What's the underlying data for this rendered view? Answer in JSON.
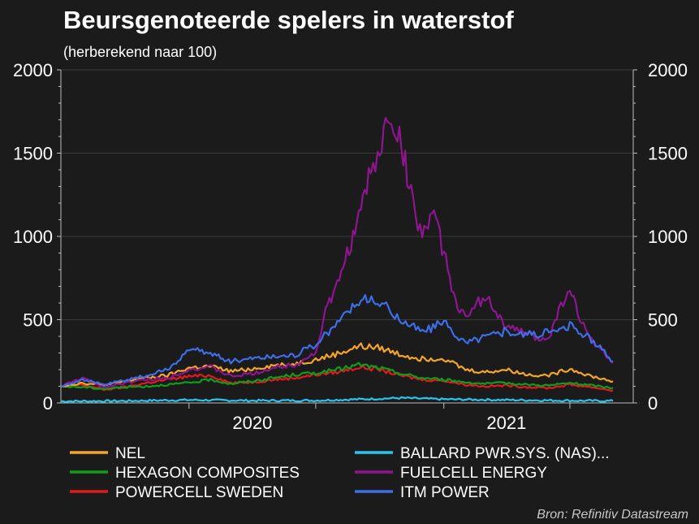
{
  "colors": {
    "background": "#1b1b1b",
    "text": "#ffffff",
    "source_text": "#c8c8c8",
    "grid": "#3a3a3a",
    "axis": "#bdbdbd"
  },
  "chart_data": {
    "type": "line",
    "title": "Beursgenoteerde spelers in waterstof",
    "subtitle": "(herberekend naar 100)",
    "source": "Bron: Refinitiv Datastream",
    "xlabel": "",
    "ylabel": "",
    "ylim": [
      0,
      2000
    ],
    "xlim": [
      "2019-07-01",
      "2021-09-30"
    ],
    "y_ticks": [
      "0",
      "500",
      "1000",
      "1500",
      "2000"
    ],
    "y_tick_values": [
      0,
      500,
      1000,
      1500,
      2000
    ],
    "x_ticks": [
      {
        "date": "2020-01-01",
        "label": ""
      },
      {
        "date": "2020-07-01",
        "label": ""
      },
      {
        "date": "2021-01-01",
        "label": ""
      },
      {
        "date": "2021-07-01",
        "label": ""
      }
    ],
    "x_tick_labels": [
      {
        "date": "2020-04-01",
        "label": "2020"
      },
      {
        "date": "2021-04-01",
        "label": "2021"
      }
    ],
    "dual_y_axis": true,
    "grid": true,
    "legend_position": "bottom",
    "series": [
      {
        "name": "NEL",
        "color": "#f5a623",
        "x": [
          "2019-07-01",
          "2019-08-01",
          "2019-09-01",
          "2019-10-01",
          "2019-11-01",
          "2019-12-01",
          "2020-01-01",
          "2020-02-01",
          "2020-03-01",
          "2020-04-01",
          "2020-05-01",
          "2020-06-01",
          "2020-07-01",
          "2020-08-01",
          "2020-09-01",
          "2020-10-01",
          "2020-11-01",
          "2020-12-01",
          "2021-01-01",
          "2021-02-01",
          "2021-03-01",
          "2021-04-01",
          "2021-05-01",
          "2021-06-01",
          "2021-07-01",
          "2021-08-01",
          "2021-09-01"
        ],
        "values": [
          100,
          120,
          105,
          130,
          150,
          165,
          210,
          220,
          190,
          205,
          225,
          235,
          260,
          295,
          340,
          330,
          290,
          265,
          270,
          200,
          185,
          200,
          170,
          165,
          205,
          160,
          130
        ]
      },
      {
        "name": "BALLARD PWR.SYS. (NAS)...",
        "color": "#26c6f0",
        "x": [
          "2019-07-01",
          "2019-10-01",
          "2020-01-01",
          "2020-04-01",
          "2020-07-01",
          "2020-09-01",
          "2020-11-01",
          "2021-01-01",
          "2021-04-01",
          "2021-07-01",
          "2021-09-01"
        ],
        "values": [
          10,
          12,
          18,
          14,
          15,
          22,
          30,
          22,
          18,
          14,
          12
        ]
      },
      {
        "name": "HEXAGON COMPOSITES",
        "color": "#0d9e1b",
        "x": [
          "2019-07-01",
          "2019-08-01",
          "2019-09-01",
          "2019-10-01",
          "2019-11-01",
          "2019-12-01",
          "2020-01-01",
          "2020-02-01",
          "2020-03-01",
          "2020-04-01",
          "2020-05-01",
          "2020-06-01",
          "2020-07-01",
          "2020-08-01",
          "2020-09-01",
          "2020-10-01",
          "2020-11-01",
          "2020-12-01",
          "2021-01-01",
          "2021-02-01",
          "2021-03-01",
          "2021-04-01",
          "2021-05-01",
          "2021-06-01",
          "2021-07-01",
          "2021-08-01",
          "2021-09-01"
        ],
        "values": [
          100,
          95,
          85,
          95,
          100,
          110,
          120,
          140,
          115,
          130,
          150,
          170,
          180,
          200,
          230,
          210,
          175,
          150,
          140,
          125,
          115,
          120,
          110,
          105,
          120,
          105,
          90
        ]
      },
      {
        "name": "FUELCELL ENERGY",
        "color": "#8e1590",
        "x": [
          "2019-07-01",
          "2019-08-01",
          "2019-09-01",
          "2019-10-01",
          "2019-11-01",
          "2019-12-01",
          "2020-01-01",
          "2020-02-01",
          "2020-03-01",
          "2020-04-01",
          "2020-05-01",
          "2020-06-01",
          "2020-07-01",
          "2020-07-15",
          "2020-08-01",
          "2020-08-15",
          "2020-09-01",
          "2020-09-15",
          "2020-10-01",
          "2020-10-15",
          "2020-11-01",
          "2020-11-15",
          "2020-12-01",
          "2020-12-15",
          "2021-01-01",
          "2021-01-15",
          "2021-02-01",
          "2021-03-01",
          "2021-04-01",
          "2021-05-01",
          "2021-05-15",
          "2021-06-01",
          "2021-06-15",
          "2021-07-01",
          "2021-07-15",
          "2021-08-01",
          "2021-08-15",
          "2021-09-01"
        ],
        "values": [
          100,
          150,
          95,
          120,
          140,
          150,
          200,
          215,
          160,
          175,
          210,
          230,
          300,
          550,
          700,
          900,
          1100,
          1350,
          1500,
          1750,
          1550,
          1250,
          1000,
          1150,
          900,
          650,
          500,
          650,
          450,
          420,
          380,
          400,
          550,
          700,
          500,
          380,
          320,
          240
        ]
      },
      {
        "name": "POWERCELL SWEDEN",
        "color": "#e31a1c",
        "x": [
          "2019-07-01",
          "2019-08-01",
          "2019-09-01",
          "2019-10-01",
          "2019-11-01",
          "2019-12-01",
          "2020-01-01",
          "2020-02-01",
          "2020-03-01",
          "2020-04-01",
          "2020-05-01",
          "2020-06-01",
          "2020-07-01",
          "2020-08-01",
          "2020-09-01",
          "2020-10-01",
          "2020-11-01",
          "2020-12-01",
          "2021-01-01",
          "2021-02-01",
          "2021-03-01",
          "2021-04-01",
          "2021-05-01",
          "2021-06-01",
          "2021-07-01",
          "2021-08-01",
          "2021-09-01"
        ],
        "values": [
          100,
          110,
          80,
          95,
          120,
          140,
          160,
          165,
          120,
          125,
          140,
          150,
          170,
          185,
          215,
          200,
          165,
          140,
          135,
          110,
          100,
          105,
          95,
          90,
          110,
          95,
          75
        ]
      },
      {
        "name": "ITM POWER",
        "color": "#3d6ee8",
        "x": [
          "2019-07-01",
          "2019-08-01",
          "2019-09-01",
          "2019-10-01",
          "2019-11-01",
          "2019-12-01",
          "2020-01-01",
          "2020-02-01",
          "2020-03-01",
          "2020-04-01",
          "2020-05-01",
          "2020-06-01",
          "2020-07-01",
          "2020-08-01",
          "2020-09-01",
          "2020-10-01",
          "2020-11-01",
          "2020-12-01",
          "2021-01-01",
          "2021-02-01",
          "2021-03-01",
          "2021-04-01",
          "2021-05-01",
          "2021-06-01",
          "2021-07-01",
          "2021-08-01",
          "2021-09-01"
        ],
        "values": [
          100,
          140,
          110,
          135,
          165,
          200,
          320,
          300,
          250,
          270,
          280,
          290,
          350,
          480,
          620,
          600,
          500,
          430,
          480,
          360,
          400,
          430,
          410,
          420,
          460,
          380,
          250
        ]
      }
    ]
  }
}
